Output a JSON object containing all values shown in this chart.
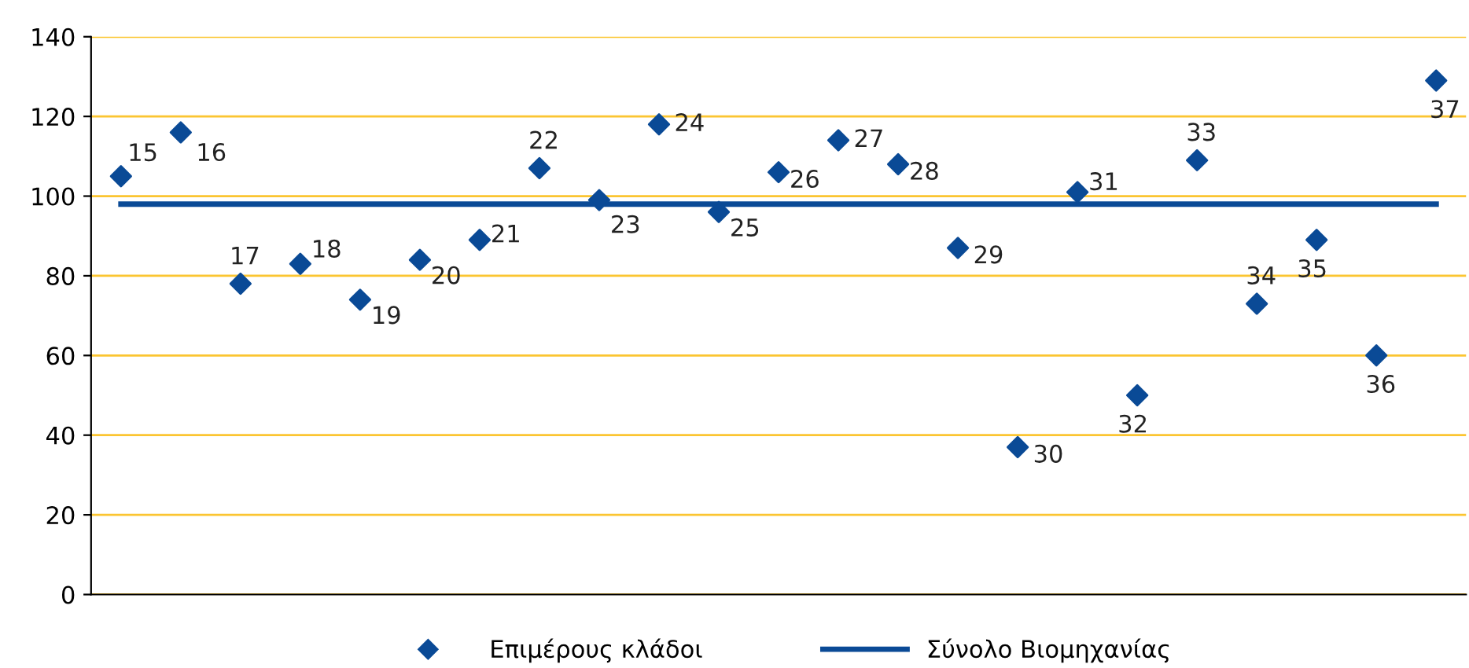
{
  "chart_data": {
    "type": "scatter",
    "categories": [
      null,
      null,
      null,
      null,
      null,
      null,
      null,
      null,
      null,
      null,
      null,
      null,
      null,
      null,
      null,
      null,
      null,
      null,
      null,
      null,
      null,
      null,
      null
    ],
    "series": [
      {
        "name": "Επιμέρους κλάδοι",
        "color": "#0a4a96",
        "marker": "diamond",
        "values": [
          105,
          116,
          78,
          83,
          74,
          84,
          89,
          107,
          99,
          118,
          96,
          106,
          114,
          108,
          87,
          37,
          101,
          50,
          109,
          73,
          89,
          60,
          129
        ]
      },
      {
        "name": "Σύνολο Βιομηχανίας",
        "type": "line",
        "color": "#0a4a96",
        "marker": "none",
        "values": [
          98,
          98,
          98,
          98,
          98,
          98,
          98,
          98,
          98,
          98,
          98,
          98,
          98,
          98,
          98,
          98,
          98,
          98,
          98,
          98,
          98,
          98,
          98
        ]
      }
    ],
    "annotations": [
      "15",
      "16",
      "17",
      "18",
      "19",
      "20",
      "21",
      "22",
      "23",
      "24",
      "25",
      "26",
      "27",
      "28",
      "29",
      "30",
      "31",
      "32",
      "33",
      "34",
      "35",
      "36",
      "37"
    ],
    "ylim": [
      0,
      140
    ],
    "yticks": [
      0,
      20,
      40,
      60,
      80,
      100,
      120,
      140
    ],
    "grid": "y",
    "legend": "bottom",
    "tick_labels": "y"
  }
}
